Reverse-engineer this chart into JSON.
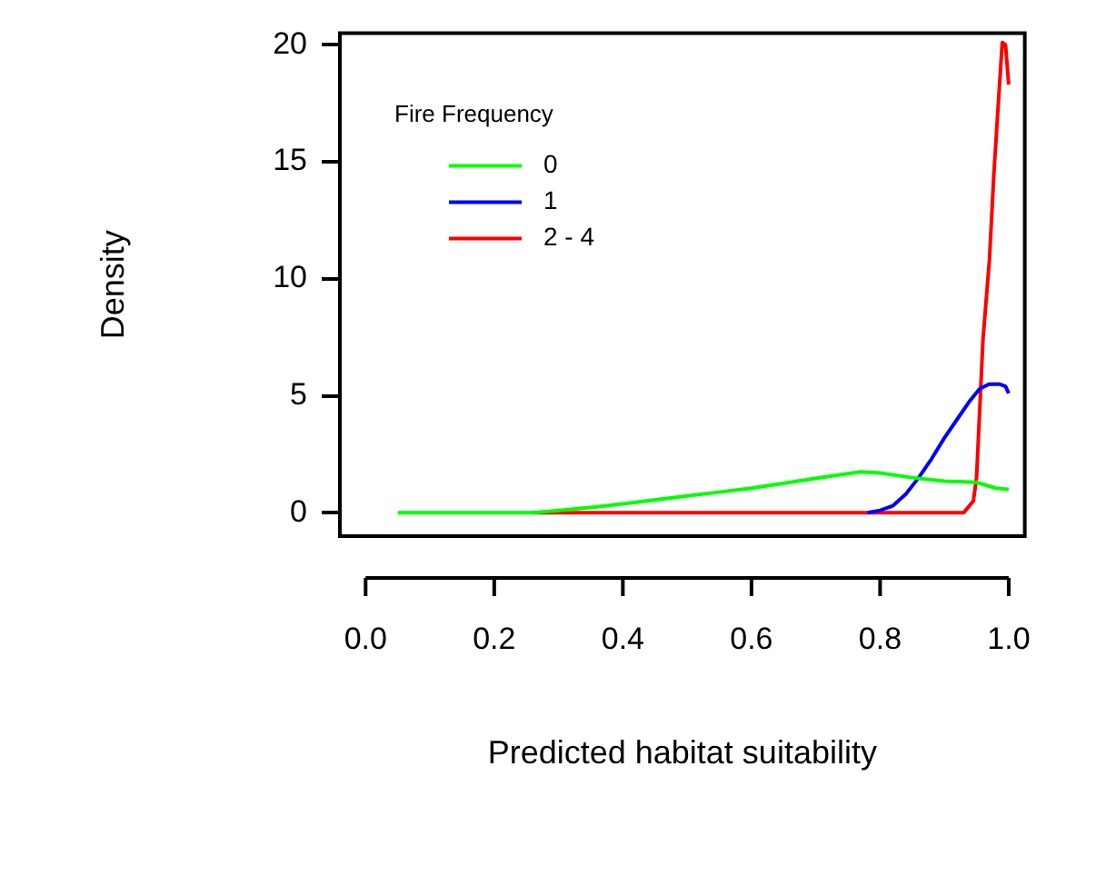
{
  "chart_data": {
    "type": "line",
    "xlabel": "Predicted habitat suitability",
    "ylabel": "Density",
    "legend_title": "Fire Frequency",
    "xlim": [
      -0.04,
      1.025
    ],
    "ylim": [
      -1,
      20.5
    ],
    "xticks": [
      {
        "value": 0,
        "label": "0.0"
      },
      0.2,
      0.4,
      0.6,
      0.8,
      {
        "value": 1,
        "label": "1.0"
      }
    ],
    "yticks": [
      0,
      5,
      10,
      15,
      20
    ],
    "legend": "top left",
    "grid": false,
    "marker": "none",
    "line_style": "solid",
    "series": [
      {
        "name": "0",
        "color": "#00ff00",
        "x": [
          0.05,
          0.15,
          0.26,
          0.3,
          0.36,
          0.42,
          0.48,
          0.54,
          0.6,
          0.66,
          0.72,
          0.77,
          0.8,
          0.85,
          0.9,
          0.95,
          0.98,
          1.0
        ],
        "values": [
          0,
          0,
          0,
          0.1,
          0.25,
          0.45,
          0.65,
          0.85,
          1.05,
          1.3,
          1.55,
          1.75,
          1.7,
          1.5,
          1.35,
          1.3,
          1.05,
          1.0
        ]
      },
      {
        "name": "1",
        "color": "#0000ff",
        "x": [
          0.78,
          0.8,
          0.82,
          0.84,
          0.86,
          0.88,
          0.9,
          0.92,
          0.94,
          0.955,
          0.97,
          0.985,
          0.995,
          1.0
        ],
        "values": [
          0,
          0.1,
          0.3,
          0.8,
          1.5,
          2.3,
          3.2,
          4.0,
          4.8,
          5.3,
          5.5,
          5.5,
          5.4,
          5.1
        ]
      },
      {
        "name": "2 - 4",
        "color": "#ff0000",
        "x": [
          0.26,
          0.5,
          0.7,
          0.93,
          0.945,
          0.95,
          0.96,
          0.97,
          0.977,
          0.985,
          0.99,
          0.995,
          1.0
        ],
        "values": [
          0,
          0,
          0,
          0,
          0.5,
          1.5,
          7.4,
          10.8,
          14.5,
          18.0,
          20.1,
          20.0,
          18.3
        ]
      }
    ]
  }
}
